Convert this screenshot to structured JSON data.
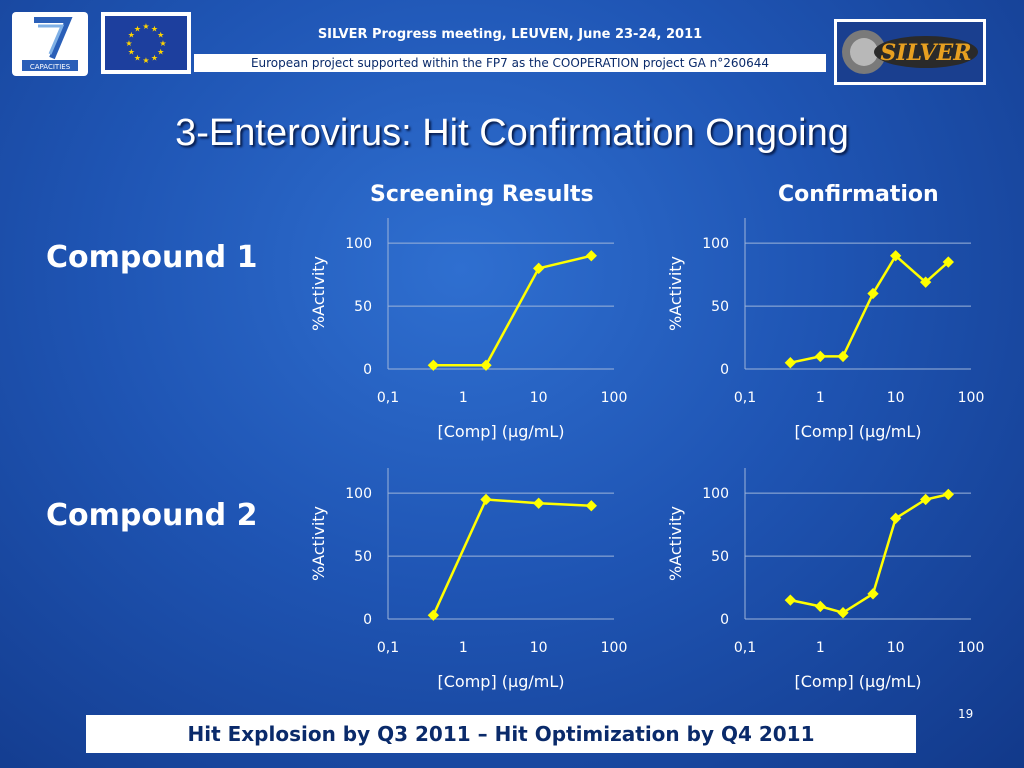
{
  "header": {
    "line1": "SILVER Progress meeting, LEUVEN, June 23-24, 2011",
    "line2": "European project supported within the FP7 as the COOPERATION project GA n°260644",
    "logo_fp7_text": "CAPACITIES",
    "logo_silver_text": "SILVER",
    "colors": {
      "eu_blue": "#1d3f9e",
      "eu_star": "#ffd400",
      "accent": "#ffff00"
    }
  },
  "slide": {
    "title": "3-Enterovirus: Hit Confirmation Ongoing",
    "col_screening": "Screening Results",
    "col_confirmation": "Confirmation",
    "row_compound1": "Compound 1",
    "row_compound2": "Compound 2",
    "footer": "Hit Explosion by Q3 2011 – Hit Optimization by Q4 2011",
    "slide_number": "19"
  },
  "chart_data": [
    {
      "type": "line",
      "xlabel": "[Comp] (µg/mL)",
      "ylabel": "%Activity",
      "xscale": "log",
      "xlim": [
        0.1,
        100
      ],
      "ylim": [
        0,
        120
      ],
      "xticks": [
        "0,1",
        "1",
        "10",
        "100"
      ],
      "yticks": [
        "0",
        "50",
        "100"
      ],
      "grid": true,
      "color": "#ffff00",
      "series": [
        {
          "x": [
            0.4,
            2,
            10,
            50
          ],
          "y": [
            3,
            3,
            80,
            90
          ]
        }
      ]
    },
    {
      "type": "line",
      "xlabel": "[Comp] (µg/mL)",
      "ylabel": "%Activity",
      "xscale": "log",
      "xlim": [
        0.1,
        100
      ],
      "ylim": [
        0,
        120
      ],
      "xticks": [
        "0,1",
        "1",
        "10",
        "100"
      ],
      "yticks": [
        "0",
        "50",
        "100"
      ],
      "grid": true,
      "color": "#ffff00",
      "series": [
        {
          "x": [
            0.4,
            1,
            2,
            5,
            10,
            25,
            50
          ],
          "y": [
            5,
            10,
            10,
            60,
            90,
            69,
            85
          ]
        }
      ]
    },
    {
      "type": "line",
      "xlabel": "[Comp] (µg/mL)",
      "ylabel": "%Activity",
      "xscale": "log",
      "xlim": [
        0.1,
        100
      ],
      "ylim": [
        0,
        120
      ],
      "xticks": [
        "0,1",
        "1",
        "10",
        "100"
      ],
      "yticks": [
        "0",
        "50",
        "100"
      ],
      "grid": true,
      "color": "#ffff00",
      "series": [
        {
          "x": [
            0.4,
            2,
            10,
            50
          ],
          "y": [
            3,
            95,
            92,
            90
          ]
        }
      ]
    },
    {
      "type": "line",
      "xlabel": "[Comp] (µg/mL)",
      "ylabel": "%Activity",
      "xscale": "log",
      "xlim": [
        0.1,
        100
      ],
      "ylim": [
        0,
        120
      ],
      "xticks": [
        "0,1",
        "1",
        "10",
        "100"
      ],
      "yticks": [
        "0",
        "50",
        "100"
      ],
      "grid": true,
      "color": "#ffff00",
      "series": [
        {
          "x": [
            0.4,
            1,
            2,
            5,
            10,
            25,
            50
          ],
          "y": [
            15,
            10,
            5,
            20,
            80,
            95,
            99
          ]
        }
      ]
    }
  ]
}
